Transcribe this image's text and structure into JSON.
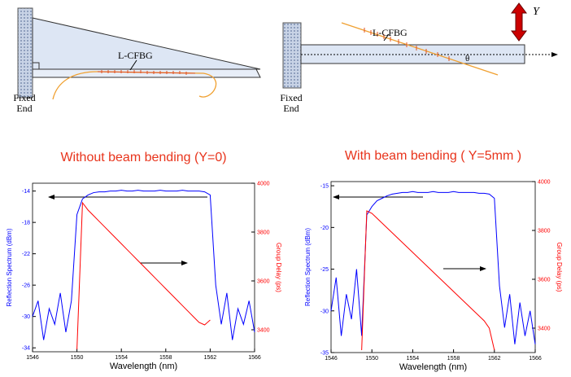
{
  "diagrams": {
    "left": {
      "fixed_label": [
        "Fixed",
        "End"
      ],
      "grating_label": "L-CFBG"
    },
    "right": {
      "fixed_label": [
        "Fixed",
        "End"
      ],
      "grating_label": "L-CFBG",
      "displacement_label": "Y",
      "angle_label": "θ"
    }
  },
  "chart_data": [
    {
      "type": "line",
      "title": "Without beam bending (Y=0)",
      "title_color": "#e8341c",
      "x_label": "Wavelength (nm)",
      "y_label": "Reflection Spectrum (dBm)",
      "y2_label": "Group Delay (ps)",
      "x": [
        1546,
        1546.5,
        1547,
        1547.5,
        1548,
        1548.5,
        1549,
        1549.5,
        1550,
        1550.5,
        1551,
        1551.5,
        1552,
        1552.5,
        1553,
        1553.5,
        1554,
        1554.5,
        1555,
        1555.5,
        1556,
        1556.5,
        1557,
        1557.5,
        1558,
        1558.5,
        1559,
        1559.5,
        1560,
        1560.5,
        1561,
        1561.5,
        1562,
        1562.5,
        1563,
        1563.5,
        1564,
        1564.5,
        1565,
        1565.5,
        1566
      ],
      "xlim": [
        1546,
        1566
      ],
      "xticks": [
        1546,
        1550,
        1554,
        1558,
        1562,
        1566
      ],
      "ylim": [
        -34.5,
        -13
      ],
      "yticks": [
        -14,
        -18,
        -22,
        -26,
        -30,
        -34
      ],
      "y2lim": [
        3310,
        4000
      ],
      "y2ticks": [
        3400,
        3600,
        3800,
        4000
      ],
      "series": [
        {
          "color": "#0000ff",
          "values": [
            -30,
            -28,
            -33,
            -29,
            -31,
            -27,
            -32,
            -28,
            -17,
            -15,
            -14.5,
            -14.2,
            -14.1,
            -14.1,
            -14,
            -14,
            -13.9,
            -14,
            -14,
            -13.9,
            -14,
            -14,
            -14,
            -13.9,
            -14,
            -14,
            -14,
            -13.9,
            -14,
            -14,
            -14,
            -14.1,
            -14.5,
            -26,
            -31,
            -27,
            -33,
            -29,
            -31,
            -28,
            -32
          ]
        },
        {
          "color": "#ff0000",
          "axis": "y2",
          "values": [
            null,
            null,
            null,
            null,
            null,
            null,
            null,
            null,
            3320,
            3920,
            3890,
            3867,
            3844,
            3821,
            3798,
            3775,
            3752,
            3729,
            3706,
            3683,
            3660,
            3637,
            3614,
            3591,
            3568,
            3545,
            3522,
            3499,
            3476,
            3453,
            3430,
            3420,
            3440,
            null,
            null,
            null,
            null,
            null,
            null,
            null,
            null
          ]
        }
      ]
    },
    {
      "type": "line",
      "title": "With beam bending ( Y=5mm )",
      "title_color": "#e8341c",
      "x_label": "Wavelength (nm)",
      "y_label": "Reflection Spectrum (dBm)",
      "y2_label": "Group Delay (ps)",
      "x": [
        1546,
        1546.5,
        1547,
        1547.5,
        1548,
        1548.5,
        1549,
        1549.5,
        1550,
        1550.5,
        1551,
        1551.5,
        1552,
        1552.5,
        1553,
        1553.5,
        1554,
        1554.5,
        1555,
        1555.5,
        1556,
        1556.5,
        1557,
        1557.5,
        1558,
        1558.5,
        1559,
        1559.5,
        1560,
        1560.5,
        1561,
        1561.5,
        1562,
        1562.5,
        1563,
        1563.5,
        1564,
        1564.5,
        1565,
        1565.5,
        1566
      ],
      "xlim": [
        1546,
        1566
      ],
      "xticks": [
        1546,
        1550,
        1554,
        1558,
        1562,
        1566
      ],
      "ylim": [
        -35,
        -14.5
      ],
      "yticks": [
        -15,
        -20,
        -25,
        -30,
        -35
      ],
      "y2lim": [
        3300,
        4000
      ],
      "y2ticks": [
        3400,
        3600,
        3800,
        4000
      ],
      "series": [
        {
          "color": "#0000ff",
          "values": [
            -30,
            -26,
            -33,
            -28,
            -31,
            -25,
            -33,
            -18.5,
            -17.5,
            -16.8,
            -16.5,
            -16.2,
            -16,
            -15.9,
            -15.8,
            -15.8,
            -15.7,
            -15.8,
            -15.8,
            -15.8,
            -15.7,
            -15.8,
            -15.8,
            -15.8,
            -15.7,
            -15.8,
            -15.8,
            -15.8,
            -15.8,
            -15.9,
            -15.9,
            -16,
            -16.5,
            -27,
            -32,
            -28,
            -34,
            -29,
            -33,
            -30,
            -34
          ]
        },
        {
          "color": "#ff0000",
          "axis": "y2",
          "values": [
            null,
            null,
            null,
            null,
            null,
            null,
            3310,
            3880,
            3870,
            3850,
            3830,
            3810,
            3790,
            3770,
            3750,
            3730,
            3710,
            3690,
            3670,
            3650,
            3630,
            3610,
            3590,
            3570,
            3550,
            3530,
            3510,
            3490,
            3470,
            3450,
            3430,
            3400,
            3310,
            null,
            null,
            null,
            null,
            null,
            null,
            null,
            null
          ]
        }
      ]
    }
  ]
}
